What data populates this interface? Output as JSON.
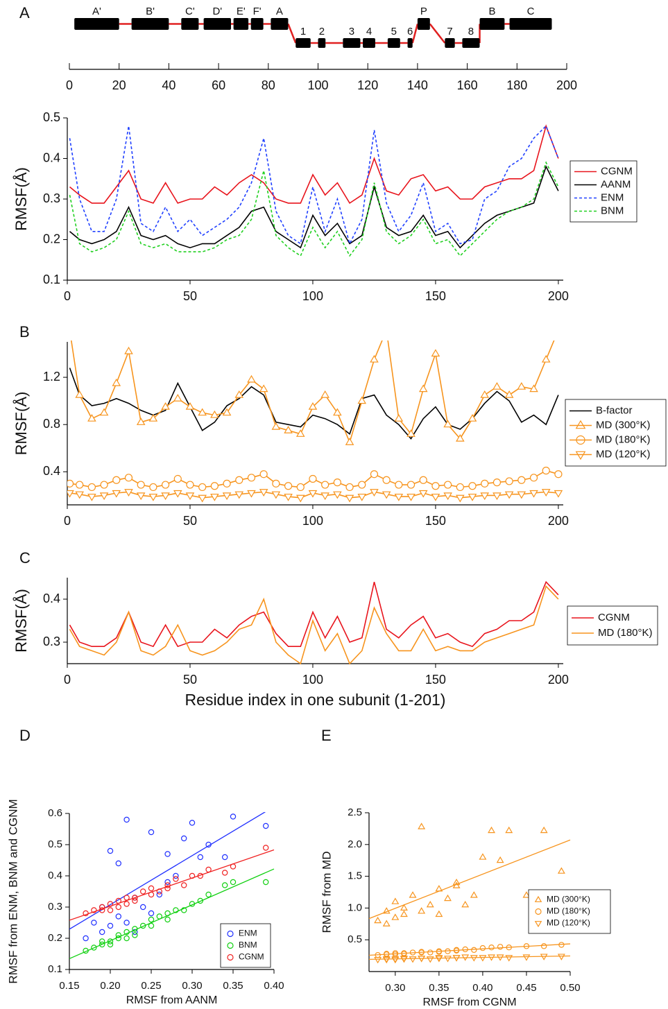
{
  "chart_data": [
    {
      "type": "segments",
      "panel": "A",
      "xlim": [
        0,
        200
      ],
      "xticks": [
        0,
        20,
        40,
        60,
        80,
        100,
        120,
        140,
        160,
        180,
        200
      ],
      "connector_color": "#e02020",
      "segments": [
        {
          "label": "A'",
          "start": 2,
          "end": 20,
          "level": "upper"
        },
        {
          "label": "B'",
          "start": 25,
          "end": 40,
          "level": "upper"
        },
        {
          "label": "C'",
          "start": 45,
          "end": 52,
          "level": "upper"
        },
        {
          "label": "D'",
          "start": 54,
          "end": 65,
          "level": "upper"
        },
        {
          "label": "E'",
          "start": 66,
          "end": 72,
          "level": "upper"
        },
        {
          "label": "F'",
          "start": 73,
          "end": 78,
          "level": "upper"
        },
        {
          "label": "A",
          "start": 81,
          "end": 88,
          "level": "upper"
        },
        {
          "label": "1",
          "start": 91,
          "end": 97,
          "level": "lower"
        },
        {
          "label": "2",
          "start": 100,
          "end": 103,
          "level": "lower"
        },
        {
          "label": "3",
          "start": 110,
          "end": 117,
          "level": "lower"
        },
        {
          "label": "4",
          "start": 118,
          "end": 123,
          "level": "lower"
        },
        {
          "label": "5",
          "start": 128,
          "end": 133,
          "level": "lower"
        },
        {
          "label": "6",
          "start": 136,
          "end": 138,
          "level": "lower"
        },
        {
          "label": "P",
          "start": 140,
          "end": 145,
          "level": "upper"
        },
        {
          "label": "7",
          "start": 151,
          "end": 155,
          "level": "lower"
        },
        {
          "label": "8",
          "start": 158,
          "end": 165,
          "level": "lower"
        },
        {
          "label": "B",
          "start": 165,
          "end": 175,
          "level": "upper"
        },
        {
          "label": "C",
          "start": 177,
          "end": 194,
          "level": "upper"
        }
      ]
    },
    {
      "type": "line",
      "y_label": "RMSF(Å)",
      "xlim": [
        0,
        202
      ],
      "xticks": [
        0,
        50,
        100,
        150,
        200
      ],
      "ylim": [
        0.1,
        0.5
      ],
      "yticks": [
        0.1,
        0.2,
        0.3,
        0.4,
        0.5
      ],
      "legend": "right",
      "x": [
        1,
        5,
        10,
        15,
        20,
        25,
        30,
        35,
        40,
        45,
        50,
        55,
        60,
        65,
        70,
        75,
        80,
        85,
        90,
        95,
        100,
        105,
        110,
        115,
        120,
        125,
        130,
        135,
        140,
        145,
        150,
        155,
        160,
        165,
        170,
        175,
        180,
        185,
        190,
        195,
        200
      ],
      "series": [
        {
          "name": "CGNM",
          "color": "#e8141c",
          "dashed": false,
          "values": [
            0.33,
            0.31,
            0.29,
            0.29,
            0.33,
            0.37,
            0.3,
            0.29,
            0.34,
            0.29,
            0.3,
            0.3,
            0.33,
            0.31,
            0.34,
            0.36,
            0.34,
            0.3,
            0.29,
            0.29,
            0.36,
            0.31,
            0.34,
            0.29,
            0.31,
            0.4,
            0.32,
            0.31,
            0.35,
            0.36,
            0.32,
            0.33,
            0.3,
            0.3,
            0.33,
            0.34,
            0.35,
            0.35,
            0.37,
            0.48,
            0.4
          ]
        },
        {
          "name": "AANM",
          "color": "#000000",
          "dashed": false,
          "values": [
            0.22,
            0.2,
            0.19,
            0.2,
            0.22,
            0.28,
            0.21,
            0.2,
            0.21,
            0.19,
            0.18,
            0.19,
            0.19,
            0.21,
            0.23,
            0.27,
            0.28,
            0.22,
            0.2,
            0.18,
            0.26,
            0.21,
            0.24,
            0.19,
            0.21,
            0.33,
            0.23,
            0.21,
            0.22,
            0.26,
            0.21,
            0.22,
            0.18,
            0.21,
            0.24,
            0.26,
            0.27,
            0.28,
            0.29,
            0.38,
            0.32
          ]
        },
        {
          "name": "ENM",
          "color": "#2040ff",
          "dashed": true,
          "values": [
            0.45,
            0.3,
            0.22,
            0.22,
            0.3,
            0.48,
            0.24,
            0.22,
            0.28,
            0.22,
            0.25,
            0.21,
            0.23,
            0.25,
            0.28,
            0.34,
            0.45,
            0.27,
            0.21,
            0.19,
            0.33,
            0.22,
            0.3,
            0.19,
            0.25,
            0.47,
            0.29,
            0.22,
            0.26,
            0.34,
            0.22,
            0.24,
            0.19,
            0.2,
            0.3,
            0.32,
            0.38,
            0.4,
            0.45,
            0.48,
            0.4
          ]
        },
        {
          "name": "BNM",
          "color": "#20d020",
          "dashed": true,
          "values": [
            0.31,
            0.19,
            0.17,
            0.18,
            0.2,
            0.27,
            0.19,
            0.18,
            0.19,
            0.17,
            0.17,
            0.17,
            0.18,
            0.2,
            0.21,
            0.25,
            0.37,
            0.21,
            0.18,
            0.16,
            0.23,
            0.18,
            0.22,
            0.16,
            0.2,
            0.34,
            0.22,
            0.19,
            0.21,
            0.25,
            0.19,
            0.2,
            0.16,
            0.19,
            0.22,
            0.25,
            0.27,
            0.28,
            0.3,
            0.39,
            0.33
          ]
        }
      ]
    },
    {
      "type": "line",
      "panel": "B",
      "y_label": "RMSF(Å)",
      "xlim": [
        0,
        202
      ],
      "xticks": [
        0,
        50,
        100,
        150,
        200
      ],
      "ylim": [
        0.12,
        1.5
      ],
      "yticks": [
        0.4,
        0.8,
        1.2
      ],
      "legend": "right",
      "x": [
        1,
        5,
        10,
        15,
        20,
        25,
        30,
        35,
        40,
        45,
        50,
        55,
        60,
        65,
        70,
        75,
        80,
        85,
        90,
        95,
        100,
        105,
        110,
        115,
        120,
        125,
        130,
        135,
        140,
        145,
        150,
        155,
        160,
        165,
        170,
        175,
        180,
        185,
        190,
        195,
        200
      ],
      "series": [
        {
          "name": "B-factor",
          "color": "#000000",
          "dashed": false,
          "values": [
            1.28,
            1.05,
            0.96,
            0.98,
            1.02,
            0.98,
            0.92,
            0.88,
            0.92,
            1.15,
            0.95,
            0.75,
            0.82,
            0.96,
            1.02,
            1.12,
            1.05,
            0.82,
            0.8,
            0.78,
            0.88,
            0.85,
            0.8,
            0.72,
            1.02,
            1.05,
            0.88,
            0.8,
            0.68,
            0.85,
            0.95,
            0.8,
            0.76,
            0.85,
            0.98,
            1.08,
            1.0,
            0.82,
            0.88,
            0.8,
            1.05
          ]
        },
        {
          "name": "MD (300°K)",
          "color": "#f7941d",
          "dashed": false,
          "marker": "triangle-up",
          "values": [
            1.6,
            1.05,
            0.85,
            0.9,
            1.15,
            1.42,
            0.82,
            0.85,
            0.95,
            1.02,
            0.95,
            0.9,
            0.88,
            0.9,
            1.05,
            1.18,
            1.1,
            0.78,
            0.75,
            0.72,
            0.95,
            1.05,
            0.9,
            0.65,
            1.0,
            1.35,
            1.6,
            0.85,
            0.72,
            1.1,
            1.4,
            0.8,
            0.68,
            0.85,
            1.05,
            1.12,
            1.05,
            1.12,
            1.1,
            1.35,
            1.6
          ]
        },
        {
          "name": "MD (180°K)",
          "color": "#f7941d",
          "dashed": false,
          "marker": "circle",
          "values": [
            0.3,
            0.29,
            0.27,
            0.29,
            0.33,
            0.35,
            0.29,
            0.27,
            0.29,
            0.34,
            0.29,
            0.27,
            0.28,
            0.3,
            0.33,
            0.35,
            0.38,
            0.3,
            0.28,
            0.27,
            0.34,
            0.29,
            0.31,
            0.27,
            0.29,
            0.38,
            0.33,
            0.29,
            0.29,
            0.33,
            0.28,
            0.29,
            0.27,
            0.28,
            0.3,
            0.31,
            0.32,
            0.33,
            0.35,
            0.41,
            0.38
          ]
        },
        {
          "name": "MD (120°K)",
          "color": "#f7941d",
          "dashed": false,
          "marker": "triangle-down",
          "values": [
            0.22,
            0.21,
            0.19,
            0.2,
            0.22,
            0.23,
            0.2,
            0.19,
            0.2,
            0.22,
            0.2,
            0.18,
            0.19,
            0.2,
            0.21,
            0.22,
            0.23,
            0.21,
            0.19,
            0.18,
            0.22,
            0.2,
            0.21,
            0.18,
            0.19,
            0.23,
            0.21,
            0.19,
            0.19,
            0.22,
            0.19,
            0.2,
            0.18,
            0.19,
            0.2,
            0.2,
            0.21,
            0.21,
            0.22,
            0.23,
            0.22
          ]
        }
      ]
    },
    {
      "type": "line",
      "panel": "C",
      "y_label": "RMSF(Å)",
      "x_label": "Residue index in one subunit (1-201)",
      "xlim": [
        0,
        202
      ],
      "xticks": [
        0,
        50,
        100,
        150,
        200
      ],
      "ylim": [
        0.25,
        0.45
      ],
      "yticks": [
        0.3,
        0.4
      ],
      "legend": "right",
      "x": [
        1,
        5,
        10,
        15,
        20,
        25,
        30,
        35,
        40,
        45,
        50,
        55,
        60,
        65,
        70,
        75,
        80,
        85,
        90,
        95,
        100,
        105,
        110,
        115,
        120,
        125,
        130,
        135,
        140,
        145,
        150,
        155,
        160,
        165,
        170,
        175,
        180,
        185,
        190,
        195,
        200
      ],
      "series": [
        {
          "name": "CGNM",
          "color": "#e8141c",
          "dashed": false,
          "values": [
            0.34,
            0.3,
            0.29,
            0.29,
            0.31,
            0.37,
            0.3,
            0.29,
            0.34,
            0.29,
            0.3,
            0.3,
            0.33,
            0.31,
            0.34,
            0.36,
            0.37,
            0.32,
            0.29,
            0.29,
            0.37,
            0.31,
            0.36,
            0.3,
            0.31,
            0.44,
            0.33,
            0.31,
            0.34,
            0.36,
            0.31,
            0.32,
            0.3,
            0.29,
            0.32,
            0.33,
            0.35,
            0.35,
            0.37,
            0.44,
            0.41
          ]
        },
        {
          "name": "MD (180°K)",
          "color": "#f7941d",
          "dashed": false,
          "values": [
            0.33,
            0.29,
            0.28,
            0.27,
            0.3,
            0.37,
            0.28,
            0.27,
            0.29,
            0.34,
            0.28,
            0.27,
            0.28,
            0.3,
            0.33,
            0.34,
            0.4,
            0.3,
            0.27,
            0.25,
            0.35,
            0.28,
            0.32,
            0.25,
            0.28,
            0.38,
            0.32,
            0.28,
            0.28,
            0.33,
            0.28,
            0.29,
            0.28,
            0.28,
            0.3,
            0.31,
            0.32,
            0.33,
            0.34,
            0.43,
            0.4
          ]
        }
      ]
    },
    {
      "type": "scatter",
      "panel": "D",
      "x_label": "RMSF from AANM",
      "y_label": "RMSF from ENM, BNM and CGNM",
      "xlim": [
        0.15,
        0.4
      ],
      "xticks": [
        0.15,
        {
          "value": 0.2,
          "label": "0.20"
        },
        0.25,
        {
          "value": 0.3,
          "label": "0.30"
        },
        0.35,
        {
          "value": 0.4,
          "label": "0.40"
        }
      ],
      "ylim": [
        0.1,
        0.6
      ],
      "yticks": [
        0.1,
        0.2,
        0.3,
        0.4,
        0.5,
        0.6
      ],
      "legend": "lower right",
      "trendline": true,
      "x": [
        0.17,
        0.18,
        0.19,
        0.19,
        0.2,
        0.2,
        0.21,
        0.21,
        0.22,
        0.22,
        0.23,
        0.23,
        0.24,
        0.25,
        0.25,
        0.26,
        0.27,
        0.27,
        0.28,
        0.29,
        0.3,
        0.31,
        0.32,
        0.34,
        0.35,
        0.39
      ],
      "series": [
        {
          "name": "ENM",
          "color": "#2030ff",
          "marker": "circle",
          "values": [
            0.2,
            0.25,
            0.22,
            0.3,
            0.48,
            0.24,
            0.27,
            0.44,
            0.25,
            0.58,
            0.33,
            0.22,
            0.3,
            0.54,
            0.28,
            0.34,
            0.47,
            0.38,
            0.4,
            0.52,
            0.57,
            0.46,
            0.5,
            0.46,
            0.59,
            0.56
          ]
        },
        {
          "name": "BNM",
          "color": "#10d010",
          "marker": "circle",
          "values": [
            0.16,
            0.17,
            0.18,
            0.19,
            0.19,
            0.18,
            0.2,
            0.21,
            0.22,
            0.2,
            0.23,
            0.21,
            0.24,
            0.26,
            0.24,
            0.27,
            0.28,
            0.26,
            0.29,
            0.29,
            0.31,
            0.32,
            0.34,
            0.37,
            0.38,
            0.38
          ]
        },
        {
          "name": "CGNM",
          "color": "#f02020",
          "marker": "circle",
          "values": [
            0.28,
            0.29,
            0.29,
            0.3,
            0.29,
            0.31,
            0.3,
            0.32,
            0.31,
            0.33,
            0.32,
            0.33,
            0.35,
            0.34,
            0.36,
            0.35,
            0.37,
            0.36,
            0.39,
            0.37,
            0.4,
            0.4,
            0.42,
            0.41,
            0.43,
            0.49
          ]
        }
      ]
    },
    {
      "type": "scatter",
      "panel": "E",
      "x_label": "RMSF from CGNM",
      "y_label": "RMSF from MD",
      "xlim": [
        0.27,
        0.5
      ],
      "xticks": [
        {
          "value": 0.3,
          "label": "0.30"
        },
        0.35,
        {
          "value": 0.4,
          "label": "0.40"
        },
        0.45,
        {
          "value": 0.5,
          "label": "0.50"
        }
      ],
      "ylim": [
        0,
        2.5
      ],
      "yticks": [
        0.5,
        {
          "value": 1,
          "label": "1.0"
        },
        1.5,
        {
          "value": 2,
          "label": "2.0"
        },
        2.5
      ],
      "legend": "center right",
      "trendline": true,
      "x": [
        0.28,
        0.29,
        0.29,
        0.3,
        0.3,
        0.31,
        0.31,
        0.32,
        0.33,
        0.33,
        0.34,
        0.35,
        0.35,
        0.36,
        0.37,
        0.37,
        0.38,
        0.39,
        0.4,
        0.41,
        0.42,
        0.43,
        0.45,
        0.47,
        0.49
      ],
      "series": [
        {
          "name": "MD (300°K)",
          "color": "#f7941d",
          "marker": "triangle-up",
          "values": [
            0.8,
            0.95,
            0.75,
            1.1,
            0.85,
            0.9,
            1.0,
            1.2,
            2.28,
            0.95,
            1.05,
            1.3,
            0.9,
            1.15,
            1.35,
            1.4,
            1.05,
            1.2,
            1.8,
            2.22,
            1.75,
            2.22,
            1.2,
            2.22,
            1.58
          ]
        },
        {
          "name": "MD (180°K)",
          "color": "#f7941d",
          "marker": "circle",
          "values": [
            0.26,
            0.27,
            0.28,
            0.27,
            0.29,
            0.28,
            0.29,
            0.3,
            0.3,
            0.31,
            0.3,
            0.31,
            0.32,
            0.32,
            0.34,
            0.33,
            0.35,
            0.34,
            0.37,
            0.38,
            0.39,
            0.38,
            0.4,
            0.4,
            0.42
          ]
        },
        {
          "name": "MD (120°K)",
          "color": "#f7941d",
          "marker": "triangle-down",
          "values": [
            0.19,
            0.19,
            0.2,
            0.19,
            0.2,
            0.2,
            0.21,
            0.2,
            0.21,
            0.21,
            0.2,
            0.21,
            0.22,
            0.21,
            0.22,
            0.22,
            0.23,
            0.22,
            0.22,
            0.23,
            0.23,
            0.22,
            0.23,
            0.24,
            0.24
          ]
        }
      ]
    }
  ]
}
